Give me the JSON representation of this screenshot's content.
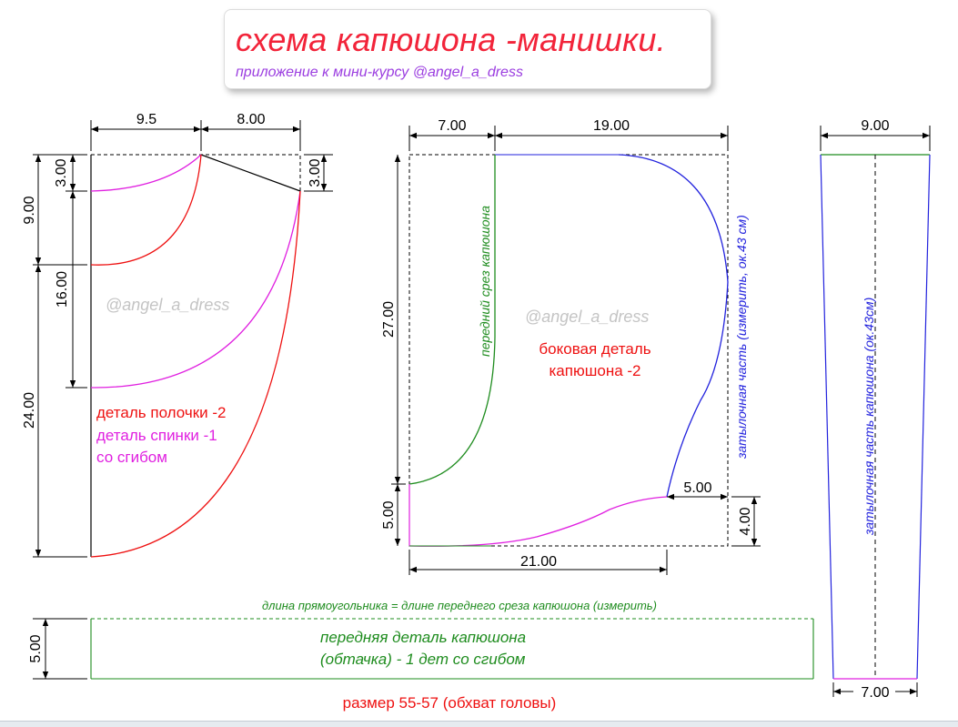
{
  "title": {
    "main": "схема капюшона -манишки.",
    "subtitle": "приложение к мини-курсу @angel_a_dress"
  },
  "watermark": "@angel_a_dress",
  "colors": {
    "red": "#ee1111",
    "magenta": "#e020e0",
    "green": "#1e8c1e",
    "blue": "#2222dd"
  },
  "left_piece": {
    "dims": {
      "top_a": "9.5",
      "top_b": "8.00",
      "left_3": "3.00",
      "left_9": "9.00",
      "left_16": "16.00",
      "left_24": "24.00",
      "right_3": "3.00"
    },
    "label_front": "деталь полочки -2",
    "label_back": "деталь спинки -1",
    "label_fold": "со сгибом"
  },
  "middle_piece": {
    "dims": {
      "top_a": "7.00",
      "top_b": "19.00",
      "left_27": "27.00",
      "left_5": "5.00",
      "bottom": "21.00",
      "right_5": "5.00",
      "right_4": "4.00"
    },
    "front_edge_label": "передний срез капюшона",
    "back_edge_label": "затылочная часть (измерить, ок.43 см)",
    "label_line1": "боковая деталь",
    "label_line2": "капюшона -2"
  },
  "right_piece": {
    "top_dim": "9.00",
    "bottom_dim": "7.00",
    "label": "затылочная часть капюшона (ок.43см)"
  },
  "bottom_piece": {
    "note": "длина прямоугольника = длине переднего среза капюшона (измерить)",
    "label_line1": "передняя деталь капюшона",
    "label_line2": "(обтачка) - 1 дет со сгибом",
    "left_dim": "5.00"
  },
  "size_label": "размер  55-57  (обхват головы)"
}
